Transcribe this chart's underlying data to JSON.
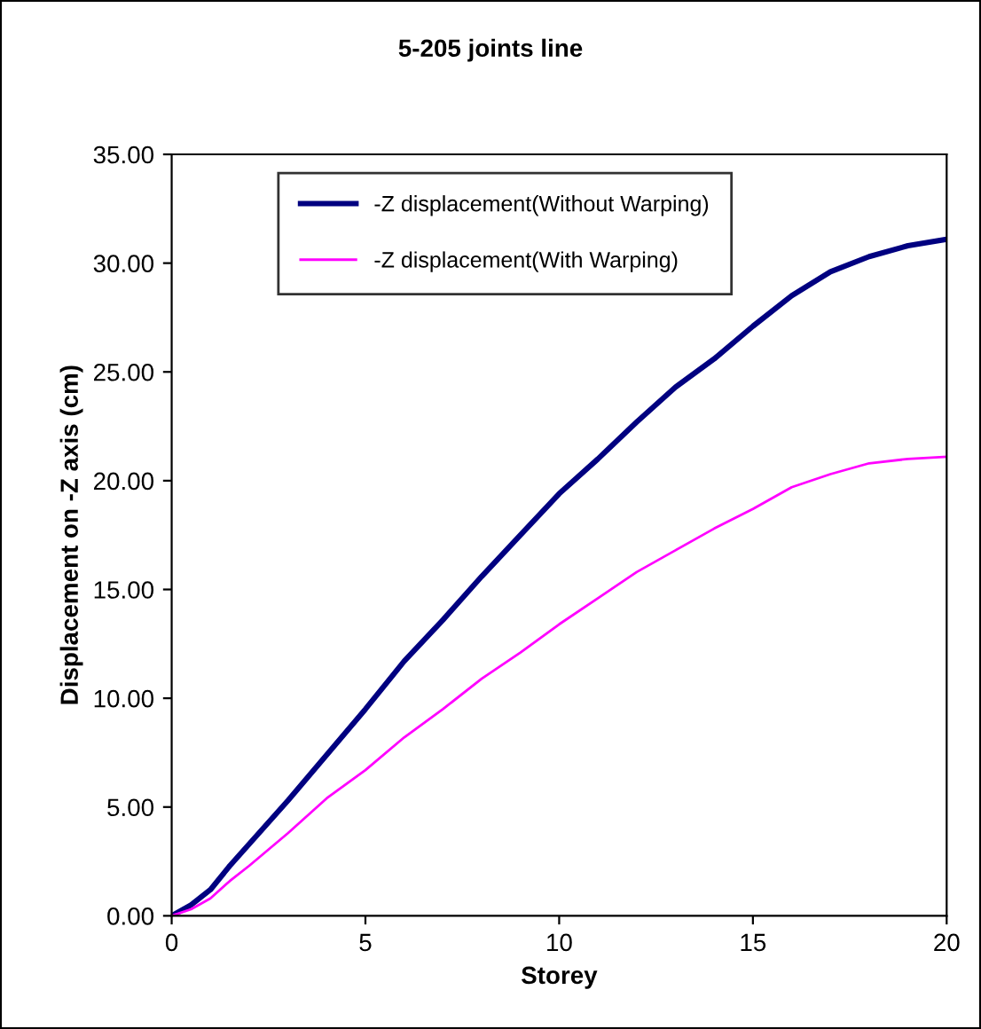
{
  "chart_data": {
    "type": "line",
    "title": "5-205 joints line",
    "xlabel": "Storey",
    "ylabel": "Displacement on -Z axis (cm)",
    "xlim": [
      0,
      20
    ],
    "xticks": [
      0,
      5,
      10,
      15,
      20
    ],
    "ylim": [
      0,
      35
    ],
    "yticks": [
      {
        "value": 0,
        "label": "0.00"
      },
      {
        "value": 5,
        "label": "5.00"
      },
      {
        "value": 10,
        "label": "10.00"
      },
      {
        "value": 15,
        "label": "15.00"
      },
      {
        "value": 20,
        "label": "20.00"
      },
      {
        "value": 25,
        "label": "25.00"
      },
      {
        "value": 30,
        "label": "30.00"
      },
      {
        "value": 35,
        "label": "35.00"
      }
    ],
    "x": [
      0,
      0.5,
      1,
      1.5,
      2,
      3,
      4,
      5,
      6,
      7,
      8,
      9,
      10,
      11,
      12,
      13,
      14,
      15,
      16,
      17,
      18,
      19,
      20
    ],
    "series": [
      {
        "name": "-Z displacement(Without Warping)",
        "color": "#000080",
        "values": [
          0,
          0.5,
          1.2,
          2.3,
          3.3,
          5.3,
          7.4,
          9.5,
          11.7,
          13.6,
          15.6,
          17.5,
          19.4,
          21.0,
          22.7,
          24.3,
          25.6,
          27.1,
          28.5,
          29.6,
          30.3,
          30.8,
          31.1
        ]
      },
      {
        "name": "-Z displacement(With Warping)",
        "color": "#ff00ff",
        "values": [
          0,
          0.3,
          0.8,
          1.6,
          2.3,
          3.8,
          5.4,
          6.7,
          8.2,
          9.5,
          10.9,
          12.1,
          13.4,
          14.6,
          15.8,
          16.8,
          17.8,
          18.7,
          19.7,
          20.3,
          20.8,
          21.0,
          21.1
        ]
      }
    ],
    "legend": "top",
    "grid": false,
    "marker": "none",
    "line_style": "solid"
  }
}
